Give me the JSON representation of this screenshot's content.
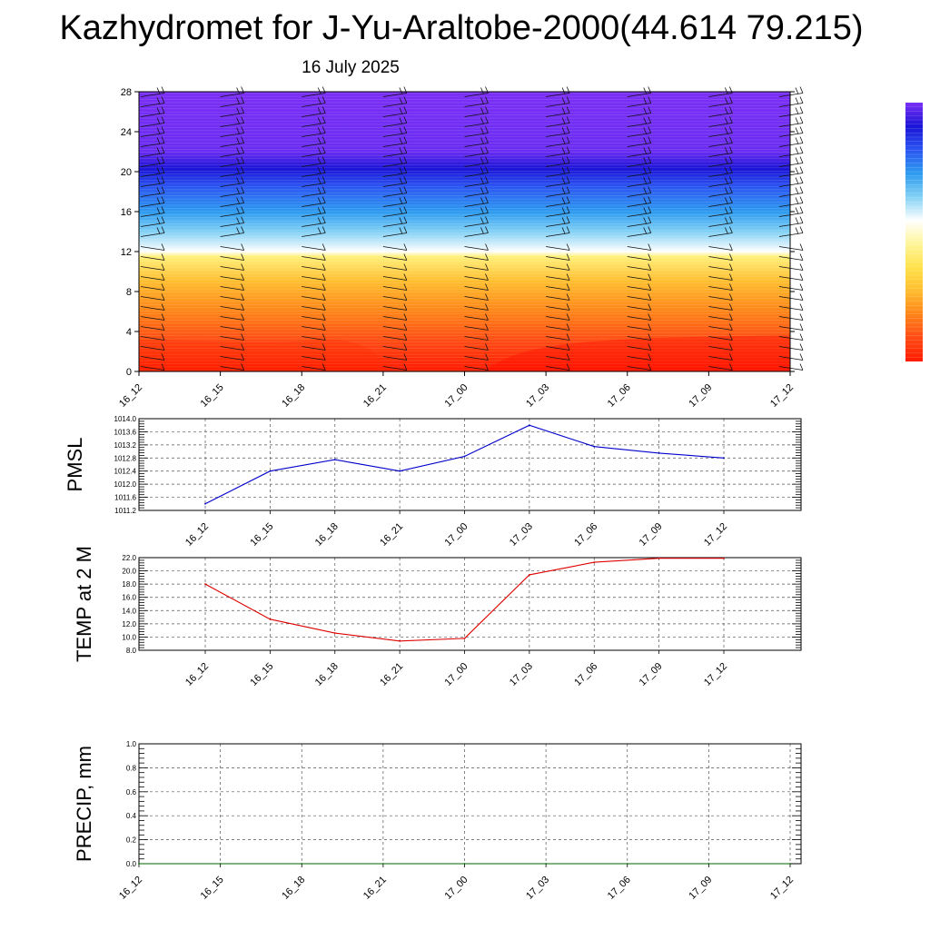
{
  "title": "Kazhydromet for J-Yu-Araltobe-2000(44.614 79.215)",
  "subtitle": "16 July 2025",
  "chart_data": [
    {
      "type": "heatmap",
      "name": "vertical-cross-section",
      "x_categories": [
        "16_12",
        "16_15",
        "16_18",
        "16_21",
        "17_00",
        "17_03",
        "17_06",
        "17_09",
        "17_12"
      ],
      "ylim": [
        0,
        28
      ],
      "yticks": [
        "0",
        "4",
        "8",
        "12",
        "16",
        "20",
        "24",
        "28"
      ],
      "color_stops": [
        {
          "y": 0,
          "color": "#ff1a00"
        },
        {
          "y": 3,
          "color": "#ff4a14"
        },
        {
          "y": 6,
          "color": "#ff8418"
        },
        {
          "y": 9,
          "color": "#ffbd2e"
        },
        {
          "y": 11.5,
          "color": "#fff07a"
        },
        {
          "y": 12,
          "color": "#ffffff"
        },
        {
          "y": 14,
          "color": "#82d1f5"
        },
        {
          "y": 16,
          "color": "#2d9bf0"
        },
        {
          "y": 18.5,
          "color": "#2b55f2"
        },
        {
          "y": 20.3,
          "color": "#1a14d6"
        },
        {
          "y": 22,
          "color": "#6a2cf2"
        },
        {
          "y": 28,
          "color": "#7b2ff5"
        }
      ],
      "wind_barbs": true,
      "colorbar": {
        "placement": "right",
        "colors": [
          "#ff1a00",
          "#ff4a14",
          "#ff8418",
          "#ffbd2e",
          "#ffe24a",
          "#fff59a",
          "#ffffff",
          "#82d1f5",
          "#2d9bf0",
          "#2b55f2",
          "#1a14d6",
          "#7b2ff5"
        ]
      }
    },
    {
      "type": "line",
      "name": "pmsl",
      "ylabel": "PMSL",
      "x": [
        "16_12",
        "16_15",
        "16_18",
        "16_21",
        "17_00",
        "17_03",
        "17_06",
        "17_09",
        "17_12"
      ],
      "values": [
        1011.4,
        1012.4,
        1012.75,
        1012.4,
        1012.85,
        1013.8,
        1013.15,
        1012.95,
        1012.8
      ],
      "ylim": [
        1011.2,
        1014.0
      ],
      "yticks": [
        "1011.2",
        "1011.6",
        "1012.0",
        "1012.4",
        "1012.8",
        "1013.2",
        "1013.6",
        "1014.0"
      ],
      "color": "#0000cc",
      "grid": true
    },
    {
      "type": "line",
      "name": "temp-2m",
      "ylabel": "TEMP at 2 M",
      "x": [
        "16_12",
        "16_15",
        "16_18",
        "16_21",
        "17_00",
        "17_03",
        "17_06",
        "17_09",
        "17_12"
      ],
      "values": [
        18.0,
        12.7,
        10.6,
        9.4,
        9.8,
        19.4,
        21.3,
        21.9,
        21.9
      ],
      "ylim": [
        8.0,
        22.0
      ],
      "yticks": [
        "8.0",
        "10.0",
        "12.0",
        "14.0",
        "16.0",
        "18.0",
        "20.0",
        "22.0"
      ],
      "color": "#dd0000",
      "grid": true
    },
    {
      "type": "line",
      "name": "precip",
      "ylabel": "PRECIP, mm",
      "x": [
        "16_12",
        "16_15",
        "16_18",
        "16_21",
        "17_00",
        "17_03",
        "17_06",
        "17_09",
        "17_12"
      ],
      "values": [
        0,
        0,
        0,
        0,
        0,
        0,
        0,
        0,
        0
      ],
      "ylim": [
        0.0,
        1.0
      ],
      "yticks": [
        "0.0",
        "0.2",
        "0.4",
        "0.6",
        "0.8",
        "1.0"
      ],
      "color": "#006600",
      "grid": true
    }
  ]
}
